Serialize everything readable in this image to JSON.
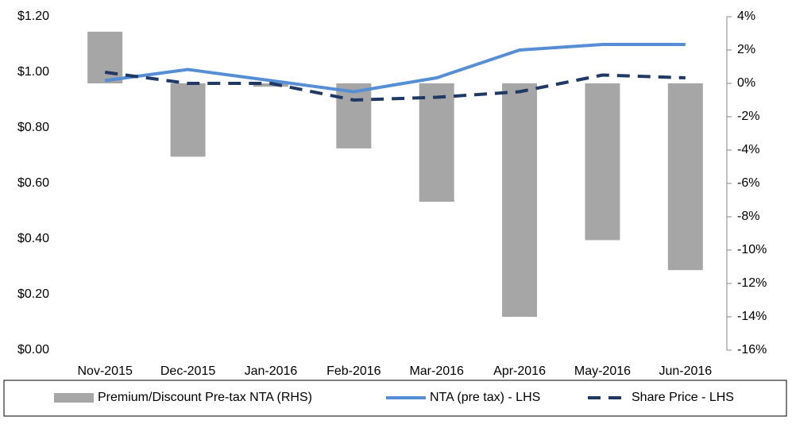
{
  "chart_data": {
    "type": "bar-line",
    "categories": [
      "Nov-2015",
      "Dec-2015",
      "Jan-2016",
      "Feb-2016",
      "Mar-2016",
      "Apr-2016",
      "May-2016",
      "Jun-2016"
    ],
    "series": [
      {
        "name": "Premium/Discount Pre-tax NTA (RHS)",
        "type": "bar",
        "axis": "y2",
        "color": "#a6a6a6",
        "values": [
          3.1,
          -4.4,
          -0.2,
          -3.9,
          -7.1,
          -14.0,
          -9.4,
          -11.2
        ]
      },
      {
        "name": "NTA (pre tax) - LHS",
        "type": "line",
        "color": "#558ed5",
        "values": [
          0.97,
          1.01,
          0.97,
          0.93,
          0.98,
          1.08,
          1.1,
          1.1
        ]
      },
      {
        "name": "Share Price - LHS",
        "type": "line",
        "dashed": true,
        "color": "#1f3864",
        "values": [
          1.0,
          0.96,
          0.96,
          0.9,
          0.91,
          0.93,
          0.99,
          0.98
        ]
      }
    ],
    "ylim": [
      0,
      1.2
    ],
    "yticks": [
      {
        "value": 0,
        "label": "$0.00"
      },
      {
        "value": 0.2,
        "label": "$0.20"
      },
      {
        "value": 0.4,
        "label": "$0.40"
      },
      {
        "value": 0.6,
        "label": "$0.60"
      },
      {
        "value": 0.8,
        "label": "$0.80"
      },
      {
        "value": 1.0,
        "label": "$1.00"
      },
      {
        "value": 1.2,
        "label": "$1.20"
      }
    ],
    "y2lim": [
      -16,
      4
    ],
    "y2ticks": [
      {
        "value": 4,
        "label": "4%"
      },
      {
        "value": 2,
        "label": "2%"
      },
      {
        "value": 0,
        "label": "0%"
      },
      {
        "value": -2,
        "label": "-2%"
      },
      {
        "value": -4,
        "label": "-4%"
      },
      {
        "value": -6,
        "label": "-6%"
      },
      {
        "value": -8,
        "label": "-8%"
      },
      {
        "value": -10,
        "label": "-10%"
      },
      {
        "value": -12,
        "label": "-12%"
      },
      {
        "value": -14,
        "label": "-14%"
      },
      {
        "value": -16,
        "label": "-16%"
      }
    ],
    "legend": "bottom"
  }
}
